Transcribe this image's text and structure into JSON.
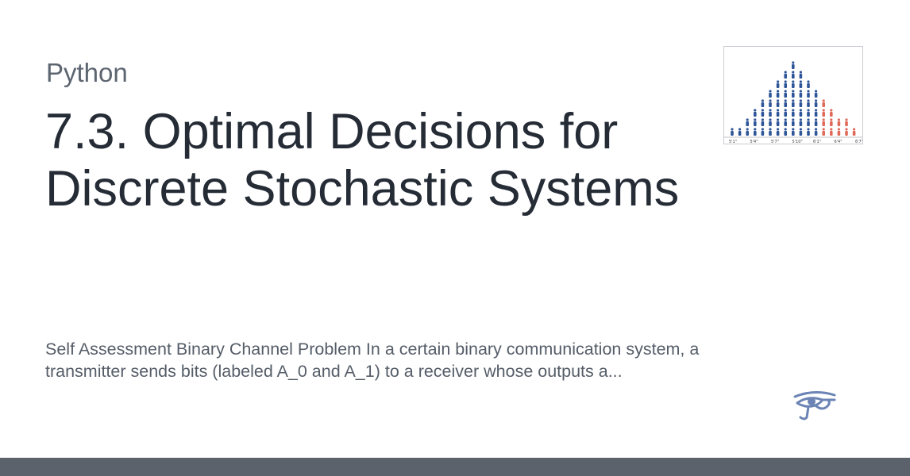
{
  "header": {
    "site_name": "Python"
  },
  "main": {
    "title": "7.3. Optimal Decisions for Discrete Stochastic Systems",
    "description": "Self Assessment Binary Channel Problem In a certain binary communication system, a transmitter sends bits (labeled A_0 and A_1) to a receiver whose outputs a..."
  },
  "thumbnail": {
    "tick_labels": [
      "5'1\"",
      "5'4\"",
      "5'7\"",
      "5'10\"",
      "6'1\"",
      "6'4\"",
      "6'7\""
    ],
    "colors": {
      "primary": "#2e5598",
      "highlight": "#e06a5a"
    }
  },
  "logo": {
    "icon": "eye-of-horus-icon",
    "color": "#6b84b5"
  },
  "footer": {
    "color": "#5b626c"
  }
}
